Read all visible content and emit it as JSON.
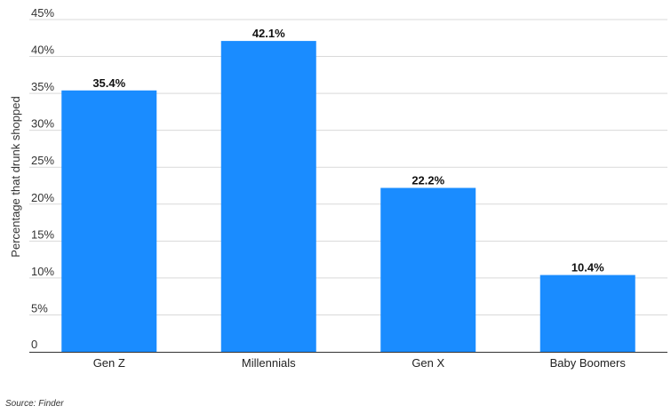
{
  "chart_data": {
    "type": "bar",
    "categories": [
      "Gen Z",
      "Millennials",
      "Gen X",
      "Baby Boomers"
    ],
    "values": [
      35.4,
      42.1,
      22.2,
      10.4
    ],
    "value_labels": [
      "35.4%",
      "42.1%",
      "22.2%",
      "10.4%"
    ],
    "title": "",
    "xlabel": "",
    "ylabel": "Percentage that drunk shopped",
    "ylim": [
      0,
      45
    ],
    "y_ticks": [
      0,
      5,
      10,
      15,
      20,
      25,
      30,
      35,
      40,
      45
    ],
    "y_tick_labels": [
      "0",
      "5%",
      "10%",
      "15%",
      "20%",
      "25%",
      "30%",
      "35%",
      "40%",
      "45%"
    ],
    "grid": true,
    "legend": "none",
    "bar_color": "#1a8cff",
    "gridline_color": "#d9d9d9",
    "axis_color": "#333333"
  },
  "source": "Source: Finder"
}
